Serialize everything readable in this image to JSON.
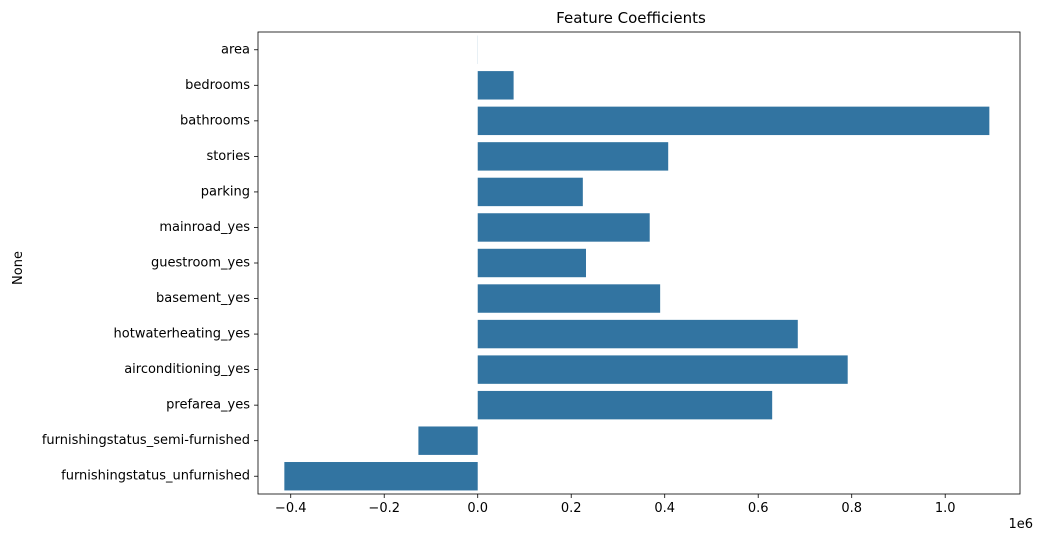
{
  "chart_data": {
    "type": "bar",
    "orientation": "horizontal",
    "title": "Feature Coefficients",
    "ylabel": "None",
    "xlabel": "",
    "x_offset_text": "1e6",
    "bar_color": "#3274a1",
    "categories": [
      "area",
      "bedrooms",
      "bathrooms",
      "stories",
      "parking",
      "mainroad_yes",
      "guestroom_yes",
      "basement_yes",
      "hotwaterheating_yes",
      "airconditioning_yes",
      "prefarea_yes",
      "furnishingstatus_semi-furnished",
      "furnishingstatus_unfurnished"
    ],
    "values": [
      235.97,
      76778.7,
      1094445.0,
      407476.6,
      224841.9,
      367919.9,
      231610.0,
      390251.2,
      684649.9,
      791426.7,
      629890.6,
      -126881.8,
      -413645.1
    ],
    "xlim": [
      -0.47,
      1.16
    ],
    "xticks": [
      -0.4,
      -0.2,
      0.0,
      0.2,
      0.4,
      0.6,
      0.8,
      1.0
    ],
    "xtick_labels": [
      "−0.4",
      "−0.2",
      "0.0",
      "0.2",
      "0.4",
      "0.6",
      "0.8",
      "1.0"
    ],
    "grid": false,
    "legend": "none"
  }
}
